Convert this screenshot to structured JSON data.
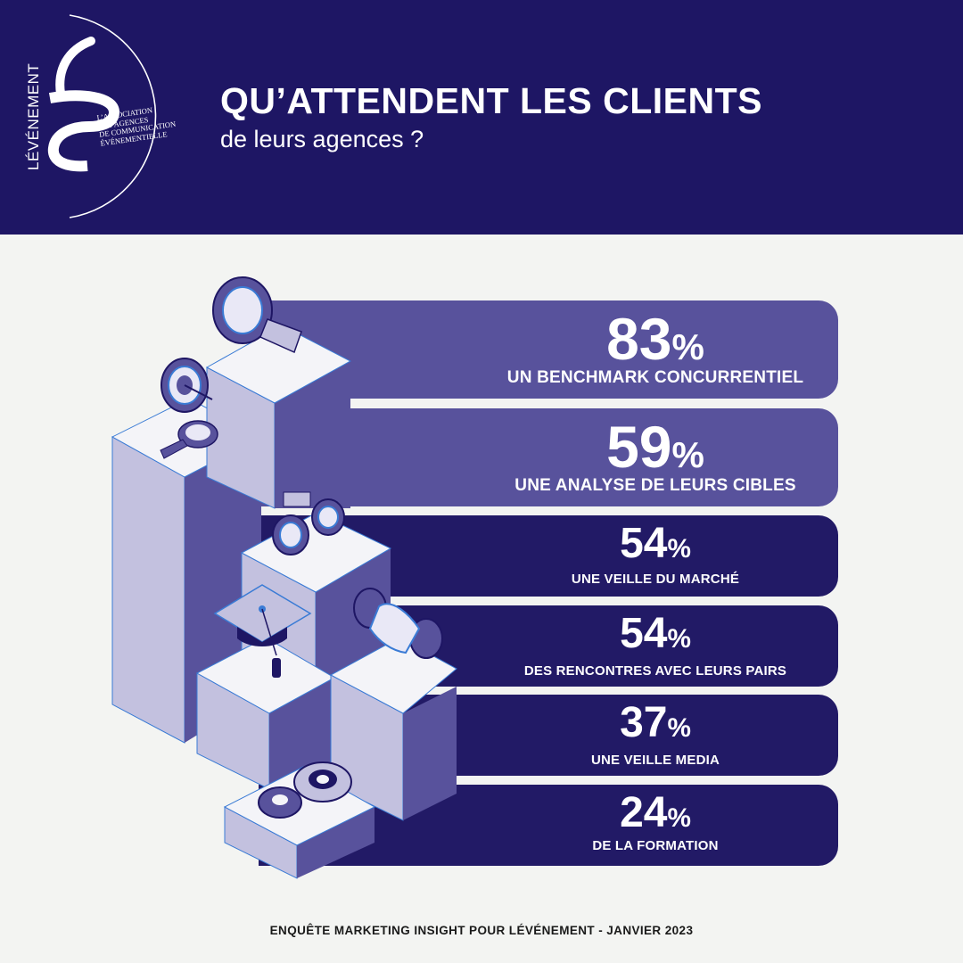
{
  "header": {
    "title": "QU’ATTENDENT LES CLIENTS",
    "subtitle": "de leurs agences ?"
  },
  "logo": {
    "brand": "LÉVÉNEMENT",
    "tagline": [
      "L’ASSOCIATION",
      "DES AGENCES",
      "DE COMMUNICATION",
      "ÉVÉNEMENTIELLE"
    ]
  },
  "colors": {
    "header_bg": "#1e1664",
    "bar_light": "#58529c",
    "bar_dark": "#221a66",
    "background": "#f3f4f2"
  },
  "chart_data": {
    "type": "bar",
    "categories": [
      "UN BENCHMARK CONCURRENTIEL",
      "UNE ANALYSE DE LEURS CIBLES",
      "UNE VEILLE DU MARCHÉ",
      "DES RENCONTRES AVEC LEURS PAIRS",
      "UNE VEILLE MEDIA",
      "DE LA FORMATION"
    ],
    "values": [
      83,
      59,
      54,
      54,
      37,
      24
    ],
    "value_labels": [
      "83",
      "59",
      "54",
      "54",
      "37",
      "24"
    ],
    "unit": "%",
    "title": "QU’ATTENDENT LES CLIENTS",
    "xlabel": "",
    "ylabel": ""
  },
  "icons": [
    "magnifier-icon",
    "target-icon",
    "binoculars-icon",
    "graduation-cap-icon",
    "handshake-icon",
    "gears-icon"
  ],
  "footer": {
    "source": "ENQUÊTE MARKETING INSIGHT POUR LÉVÉNEMENT - JANVIER 2023"
  }
}
